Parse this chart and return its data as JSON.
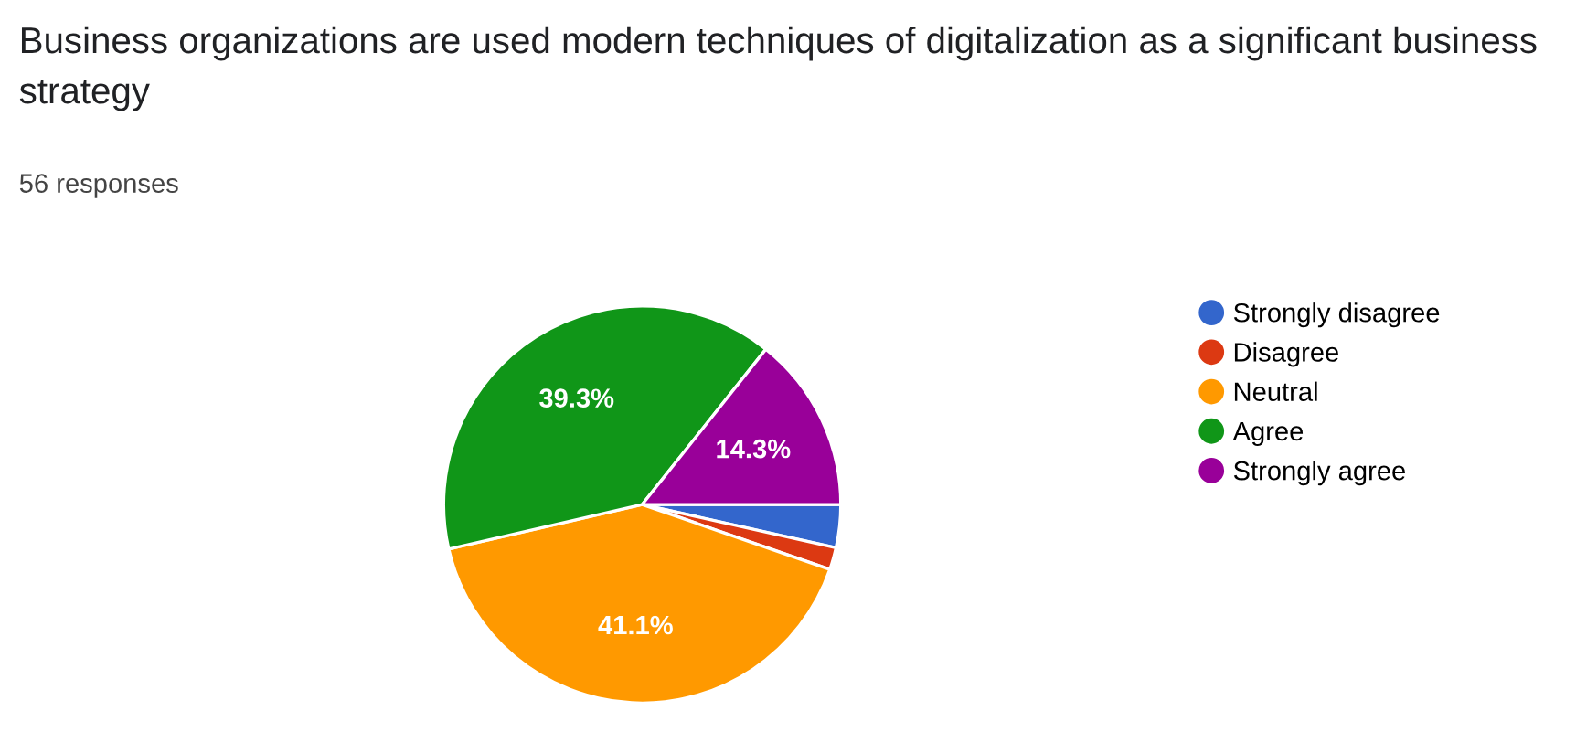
{
  "chart_data": {
    "type": "pie",
    "title": "Business organizations are used modern techniques of digitalization as a significant business strategy",
    "subtitle": "56 responses",
    "categories": [
      "Strongly disagree",
      "Disagree",
      "Neutral",
      "Agree",
      "Strongly agree"
    ],
    "values": [
      3.5,
      1.8,
      41.1,
      39.3,
      14.3
    ],
    "colors": [
      "#3366cc",
      "#dc3912",
      "#ff9900",
      "#109618",
      "#990099"
    ],
    "value_labels": [
      null,
      null,
      "41.1%",
      "39.3%",
      "14.3%"
    ],
    "legend": "right"
  }
}
